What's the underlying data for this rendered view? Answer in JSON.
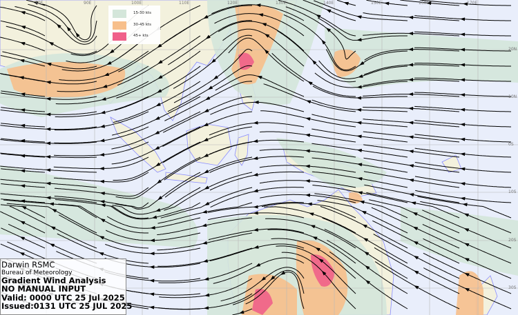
{
  "legend": {
    "items": [
      {
        "label": "15-30 kts",
        "color": "#d4e6da"
      },
      {
        "label": "30-45 kts",
        "color": "#f7bf8b"
      },
      {
        "label": "45+ kts",
        "color": "#f0608a"
      }
    ]
  },
  "info": {
    "center": "Darwin RSMC",
    "agency": "Bureau of Meteorology",
    "product": "Gradient Wind Analysis",
    "note": "NO MANUAL INPUT",
    "valid": "Valid:   0000 UTC 25 Jul 2025",
    "issued": "Issued:0131 UTC 25 JUL 2025"
  },
  "grid": {
    "longitudes": [
      "80E",
      "90E",
      "100E",
      "110E",
      "120E",
      "130E",
      "140E",
      "150E",
      "160E",
      "170E"
    ],
    "latitudes": [
      "20N",
      "10N",
      "0S",
      "10S",
      "20S",
      "30S"
    ]
  },
  "colors": {
    "ocean": "#e9eefb",
    "land": "#f3f1dd",
    "coast": "#8a8cff",
    "streamline": "#000000"
  }
}
